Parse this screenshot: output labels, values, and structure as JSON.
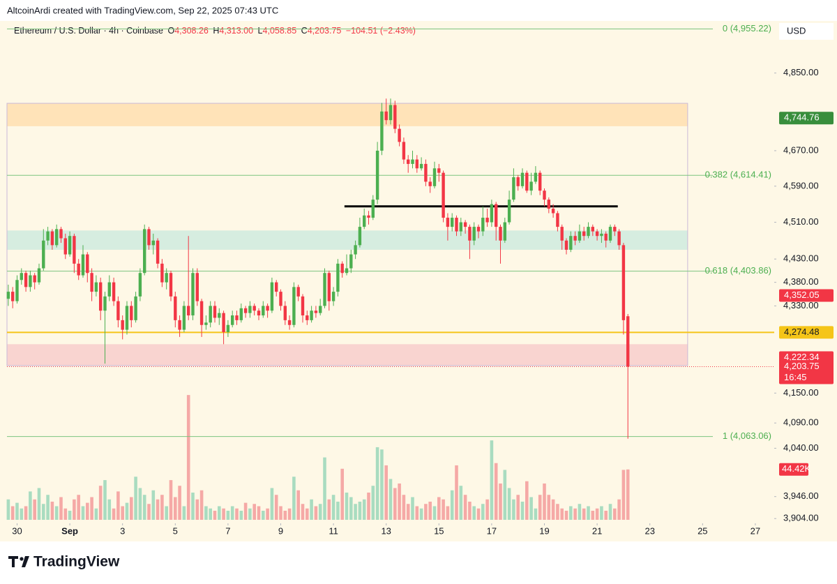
{
  "chart_data": {
    "type": "candlestick",
    "attribution": "AltcoinArdi created with TradingView.com, Sep 22, 2025 07:43 UTC",
    "symbol": "Ethereum / U.S. Dollar · 4h · Coinbase",
    "legend": {
      "open_key": "O",
      "open": "4,308.26",
      "high_key": "H",
      "high": "4,313.00",
      "low_key": "L",
      "low": "4,058.85",
      "close_key": "C",
      "close": "4,203.75",
      "change": "−104.51 (−2.43%)"
    },
    "currency": "USD",
    "brand": "TradingView",
    "log_scale": true,
    "xlim": [
      -0.3,
      174.3
    ],
    "ylim": [
      3895,
      4978
    ],
    "volume_lim": [
      0,
      115
    ],
    "up_color": "#4caf50",
    "down_color": "#f23645",
    "xticks": [
      {
        "value": 2,
        "label": "30"
      },
      {
        "value": 14,
        "label": "Sep"
      },
      {
        "value": 26,
        "label": "3"
      },
      {
        "value": 38,
        "label": "5"
      },
      {
        "value": 50,
        "label": "7"
      },
      {
        "value": 62,
        "label": "9"
      },
      {
        "value": 74,
        "label": "11"
      },
      {
        "value": 86,
        "label": "13"
      },
      {
        "value": 98,
        "label": "15"
      },
      {
        "value": 110,
        "label": "17"
      },
      {
        "value": 122,
        "label": "19"
      },
      {
        "value": 134,
        "label": "21"
      },
      {
        "value": 146,
        "label": "23"
      },
      {
        "value": 158,
        "label": "25"
      },
      {
        "value": 170,
        "label": "27"
      }
    ],
    "yticks": [
      {
        "value": 4850,
        "label": "4,850.00"
      },
      {
        "value": 4670,
        "label": "4,670.00"
      },
      {
        "value": 4590,
        "label": "4,590.00"
      },
      {
        "value": 4510,
        "label": "4,510.00"
      },
      {
        "value": 4430,
        "label": "4,430.00"
      },
      {
        "value": 4380,
        "label": "4,380.00"
      },
      {
        "value": 4330,
        "label": "4,330.00"
      },
      {
        "value": 4150,
        "label": "4,150.00"
      },
      {
        "value": 4090,
        "label": "4,090.00"
      },
      {
        "value": 4040,
        "label": "4,040.00"
      },
      {
        "value": 3946,
        "label": "3,946.00"
      },
      {
        "value": 3904,
        "label": "3,904.00"
      }
    ],
    "zones": [
      {
        "low": 4726,
        "high": 4779,
        "x_end": 154.6,
        "color": "#ffe3b8"
      },
      {
        "low": 4450,
        "high": 4492,
        "x_end": 154.6,
        "color": "#d6ede0"
      },
      {
        "low": 4206,
        "high": 4250,
        "x_end": 154.6,
        "color": "#f9d4d0"
      }
    ],
    "trend_line": {
      "value": 4545,
      "x_start": 76.5,
      "x_end": 138.7,
      "color": "#000000"
    },
    "support_line": {
      "value": 4274.48,
      "color": "#f5c518"
    },
    "fib_levels": [
      {
        "value": 4955.22,
        "label": "0 (4,955.22)"
      },
      {
        "value": 4614.41,
        "label": "0.382 (4,614.41)"
      },
      {
        "value": 4403.86,
        "label": "0.618 (4,403.86)"
      },
      {
        "value": 4063.06,
        "label": "1 (4,063.06)"
      }
    ],
    "price_tags": [
      {
        "value": 4744.76,
        "label": "4,744.76",
        "color": "#388e3c"
      },
      {
        "value": 4352.05,
        "label": "4,352.05",
        "color": "#f23645"
      },
      {
        "value": 4274.48,
        "label": "4,274.48",
        "color": "#f5c518"
      },
      {
        "value": 4222.34,
        "label": "4,222.34",
        "color": "#f23645"
      },
      {
        "value": 4203.75,
        "label": "4,203.75",
        "countdown": "16:45",
        "color": "#f23645"
      }
    ],
    "volume_tag": {
      "value": 44.42,
      "label": "44.42K",
      "color": "#f23645"
    },
    "open": [
      4345,
      4360,
      4340,
      4385,
      4400,
      4370,
      4395,
      4380,
      4410,
      4470,
      4490,
      4460,
      4495,
      4475,
      4440,
      4480,
      4420,
      4395,
      4440,
      4400,
      4360,
      4380,
      4320,
      4350,
      4380,
      4340,
      4300,
      4280,
      4330,
      4300,
      4350,
      4400,
      4495,
      4460,
      4470,
      4420,
      4380,
      4400,
      4350,
      4300,
      4280,
      4330,
      4310,
      4400,
      4340,
      4290,
      4295,
      4330,
      4305,
      4315,
      4275,
      4290,
      4310,
      4300,
      4325,
      4315,
      4330,
      4320,
      4310,
      4330,
      4320,
      4380,
      4360,
      4330,
      4300,
      4290,
      4370,
      4350,
      4310,
      4300,
      4320,
      4315,
      4330,
      4400,
      4340,
      4360,
      4420,
      4400,
      4410,
      4440,
      4460,
      4500,
      4525,
      4520,
      4560,
      4670,
      4760,
      4740,
      4775,
      4720,
      4690,
      4650,
      4640,
      4650,
      4630,
      4640,
      4600,
      4590,
      4630,
      4620,
      4520,
      4500,
      4520,
      4490,
      4510,
      4500,
      4470,
      4500,
      4490,
      4520,
      4510,
      4550,
      4500,
      4470,
      4510,
      4560,
      4610,
      4590,
      4620,
      4580,
      4600,
      4620,
      4580,
      4560,
      4540,
      4530,
      4500,
      4470,
      4450,
      4480,
      4470,
      4490,
      4480,
      4500,
      4490,
      4480,
      4485,
      4470,
      4500,
      4490,
      4460,
      4308.26
    ],
    "high": [
      4375,
      4370,
      4395,
      4410,
      4405,
      4405,
      4400,
      4420,
      4495,
      4500,
      4495,
      4505,
      4500,
      4485,
      4490,
      4485,
      4430,
      4460,
      4445,
      4410,
      4395,
      4390,
      4360,
      4395,
      4390,
      4350,
      4310,
      4340,
      4340,
      4360,
      4410,
      4505,
      4500,
      4485,
      4475,
      4430,
      4410,
      4405,
      4360,
      4310,
      4340,
      4480,
      4410,
      4410,
      4345,
      4310,
      4340,
      4340,
      4325,
      4320,
      4300,
      4320,
      4320,
      4335,
      4330,
      4340,
      4335,
      4325,
      4340,
      4335,
      4390,
      4385,
      4365,
      4340,
      4310,
      4380,
      4375,
      4355,
      4320,
      4330,
      4330,
      4345,
      4410,
      4405,
      4370,
      4430,
      4425,
      4440,
      4450,
      4470,
      4520,
      4540,
      4535,
      4570,
      4690,
      4780,
      4790,
      4790,
      4785,
      4730,
      4700,
      4660,
      4670,
      4660,
      4655,
      4650,
      4610,
      4645,
      4640,
      4625,
      4530,
      4530,
      4525,
      4520,
      4515,
      4505,
      4510,
      4505,
      4545,
      4540,
      4560,
      4555,
      4505,
      4520,
      4580,
      4630,
      4615,
      4630,
      4625,
      4620,
      4635,
      4625,
      4585,
      4565,
      4550,
      4535,
      4505,
      4475,
      4490,
      4490,
      4505,
      4500,
      4510,
      4505,
      4495,
      4495,
      4490,
      4505,
      4505,
      4495,
      4465,
      4313.0
    ],
    "low": [
      4330,
      4325,
      4335,
      4375,
      4360,
      4360,
      4365,
      4375,
      4405,
      4460,
      4450,
      4455,
      4465,
      4430,
      4435,
      4400,
      4385,
      4390,
      4380,
      4340,
      4350,
      4300,
      4210,
      4340,
      4330,
      4285,
      4260,
      4270,
      4285,
      4295,
      4340,
      4395,
      4450,
      4440,
      4410,
      4370,
      4365,
      4340,
      4285,
      4265,
      4275,
      4300,
      4300,
      4330,
      4265,
      4280,
      4285,
      4295,
      4290,
      4250,
      4265,
      4285,
      4290,
      4295,
      4305,
      4305,
      4310,
      4300,
      4305,
      4305,
      4315,
      4350,
      4320,
      4290,
      4280,
      4285,
      4340,
      4295,
      4290,
      4295,
      4305,
      4310,
      4325,
      4320,
      4330,
      4350,
      4390,
      4395,
      4400,
      4430,
      4455,
      4495,
      4505,
      4515,
      4550,
      4660,
      4730,
      4730,
      4710,
      4680,
      4640,
      4620,
      4630,
      4620,
      4625,
      4590,
      4575,
      4585,
      4600,
      4510,
      4470,
      4490,
      4480,
      4480,
      4485,
      4430,
      4460,
      4475,
      4480,
      4500,
      4500,
      4470,
      4420,
      4465,
      4505,
      4555,
      4580,
      4585,
      4575,
      4570,
      4595,
      4570,
      4545,
      4530,
      4520,
      4490,
      4450,
      4440,
      4445,
      4460,
      4465,
      4470,
      4475,
      4480,
      4470,
      4465,
      4455,
      4465,
      4480,
      4450,
      4270,
      4058.85
    ],
    "close": [
      4360,
      4340,
      4385,
      4400,
      4370,
      4395,
      4380,
      4410,
      4470,
      4490,
      4460,
      4495,
      4475,
      4440,
      4480,
      4420,
      4395,
      4440,
      4400,
      4360,
      4380,
      4320,
      4350,
      4380,
      4340,
      4300,
      4280,
      4330,
      4300,
      4350,
      4400,
      4495,
      4460,
      4470,
      4420,
      4380,
      4400,
      4350,
      4300,
      4280,
      4330,
      4310,
      4400,
      4340,
      4290,
      4295,
      4330,
      4305,
      4315,
      4275,
      4290,
      4310,
      4300,
      4325,
      4315,
      4330,
      4320,
      4310,
      4330,
      4320,
      4380,
      4360,
      4330,
      4300,
      4290,
      4370,
      4350,
      4310,
      4300,
      4320,
      4315,
      4330,
      4400,
      4340,
      4360,
      4420,
      4400,
      4410,
      4440,
      4460,
      4500,
      4525,
      4520,
      4560,
      4670,
      4760,
      4740,
      4775,
      4720,
      4690,
      4650,
      4640,
      4650,
      4630,
      4640,
      4600,
      4590,
      4630,
      4620,
      4520,
      4500,
      4520,
      4490,
      4510,
      4500,
      4470,
      4500,
      4490,
      4520,
      4510,
      4550,
      4500,
      4470,
      4510,
      4560,
      4610,
      4590,
      4620,
      4580,
      4600,
      4620,
      4580,
      4560,
      4540,
      4530,
      4500,
      4470,
      4450,
      4480,
      4470,
      4490,
      4480,
      4500,
      4490,
      4480,
      4485,
      4470,
      4500,
      4490,
      4460,
      4300,
      4203.75
    ],
    "volume": [
      18,
      12,
      15,
      10,
      12,
      25,
      18,
      28,
      14,
      22,
      16,
      12,
      20,
      10,
      8,
      18,
      22,
      12,
      15,
      20,
      10,
      30,
      35,
      18,
      10,
      25,
      12,
      15,
      20,
      38,
      28,
      22,
      14,
      26,
      18,
      22,
      12,
      35,
      20,
      30,
      12,
      110,
      24,
      18,
      26,
      12,
      10,
      8,
      12,
      10,
      8,
      12,
      10,
      8,
      15,
      10,
      14,
      12,
      8,
      10,
      28,
      22,
      12,
      8,
      10,
      38,
      26,
      14,
      10,
      18,
      12,
      14,
      55,
      18,
      22,
      16,
      45,
      24,
      20,
      14,
      16,
      18,
      24,
      30,
      64,
      62,
      48,
      36,
      28,
      32,
      22,
      14,
      20,
      12,
      10,
      14,
      16,
      12,
      20,
      18,
      12,
      26,
      48,
      30,
      22,
      16,
      12,
      10,
      14,
      18,
      70,
      50,
      32,
      44,
      28,
      18,
      22,
      16,
      34,
      20,
      10,
      22,
      32,
      22,
      18,
      14,
      10,
      8,
      12,
      10,
      14,
      10,
      12,
      8,
      10,
      12,
      8,
      14,
      10,
      18,
      44,
      44.42
    ]
  }
}
